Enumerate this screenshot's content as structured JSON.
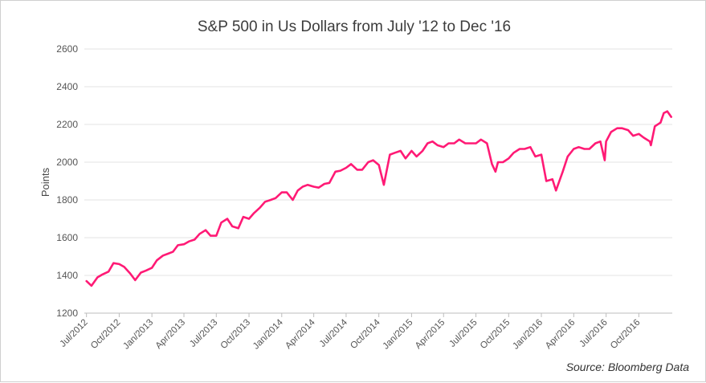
{
  "chart_data": {
    "type": "line",
    "title": "S&P 500 in Us Dollars from July '12 to Dec '16",
    "ylabel": "Points",
    "xlabel": "",
    "ylim": [
      1200,
      2600
    ],
    "yticks": [
      1200,
      1400,
      1600,
      1800,
      2000,
      2200,
      2400,
      2600
    ],
    "xticks": [
      "Jul/2012",
      "Oct/2012",
      "Jan/2013",
      "Apr/2013",
      "Jul/2013",
      "Oct/2013",
      "Jan/2014",
      "Apr/2014",
      "Jul/2014",
      "Oct/2014",
      "Jan/2015",
      "Apr/2015",
      "Jul/2015",
      "Oct/2015",
      "Jan/2016",
      "Apr/2016",
      "Jul/2016",
      "Oct/2016"
    ],
    "grid": true,
    "legend": "none",
    "line_color": "#ff1a75",
    "series": [
      {
        "x": [
          "2012-07-01",
          "2012-07-15",
          "2012-08-01",
          "2012-08-15",
          "2012-09-01",
          "2012-09-15",
          "2012-10-01",
          "2012-10-15",
          "2012-11-01",
          "2012-11-15",
          "2012-12-01",
          "2012-12-15",
          "2013-01-01",
          "2013-01-15",
          "2013-02-01",
          "2013-02-15",
          "2013-03-01",
          "2013-03-15",
          "2013-04-01",
          "2013-04-15",
          "2013-05-01",
          "2013-05-15",
          "2013-06-01",
          "2013-06-15",
          "2013-07-01",
          "2013-07-15",
          "2013-08-01",
          "2013-08-15",
          "2013-09-01",
          "2013-09-15",
          "2013-10-01",
          "2013-10-15",
          "2013-11-01",
          "2013-11-15",
          "2013-12-01",
          "2013-12-15",
          "2014-01-01",
          "2014-01-15",
          "2014-02-01",
          "2014-02-15",
          "2014-03-01",
          "2014-03-15",
          "2014-04-01",
          "2014-04-15",
          "2014-05-01",
          "2014-05-15",
          "2014-06-01",
          "2014-06-15",
          "2014-07-01",
          "2014-07-15",
          "2014-08-01",
          "2014-08-15",
          "2014-09-01",
          "2014-09-15",
          "2014-10-01",
          "2014-10-15",
          "2014-11-01",
          "2014-11-15",
          "2014-12-01",
          "2014-12-15",
          "2015-01-01",
          "2015-01-15",
          "2015-02-01",
          "2015-02-15",
          "2015-03-01",
          "2015-03-15",
          "2015-04-01",
          "2015-04-15",
          "2015-05-01",
          "2015-05-15",
          "2015-06-01",
          "2015-06-15",
          "2015-07-01",
          "2015-07-15",
          "2015-08-01",
          "2015-08-15",
          "2015-08-25",
          "2015-09-01",
          "2015-09-15",
          "2015-10-01",
          "2015-10-15",
          "2015-11-01",
          "2015-11-15",
          "2015-12-01",
          "2015-12-15",
          "2016-01-01",
          "2016-01-15",
          "2016-02-01",
          "2016-02-11",
          "2016-03-01",
          "2016-03-15",
          "2016-04-01",
          "2016-04-15",
          "2016-05-01",
          "2016-05-15",
          "2016-06-01",
          "2016-06-15",
          "2016-06-27",
          "2016-07-01",
          "2016-07-15",
          "2016-08-01",
          "2016-08-15",
          "2016-09-01",
          "2016-09-15",
          "2016-10-01",
          "2016-10-15",
          "2016-11-01",
          "2016-11-04",
          "2016-11-15",
          "2016-12-01",
          "2016-12-10",
          "2016-12-20",
          "2016-12-31"
        ],
        "y": [
          1370,
          1345,
          1390,
          1405,
          1420,
          1465,
          1460,
          1445,
          1410,
          1375,
          1415,
          1425,
          1440,
          1480,
          1505,
          1515,
          1525,
          1560,
          1565,
          1580,
          1590,
          1620,
          1640,
          1610,
          1610,
          1680,
          1700,
          1660,
          1650,
          1710,
          1700,
          1730,
          1760,
          1790,
          1800,
          1810,
          1840,
          1840,
          1800,
          1850,
          1870,
          1880,
          1870,
          1865,
          1885,
          1890,
          1950,
          1955,
          1970,
          1990,
          1960,
          1960,
          2000,
          2010,
          1985,
          1880,
          2040,
          2050,
          2060,
          2020,
          2060,
          2030,
          2060,
          2100,
          2110,
          2090,
          2080,
          2100,
          2100,
          2120,
          2100,
          2100,
          2100,
          2120,
          2100,
          1990,
          1950,
          2000,
          2000,
          2020,
          2050,
          2070,
          2070,
          2080,
          2030,
          2040,
          1900,
          1910,
          1850,
          1950,
          2030,
          2070,
          2080,
          2070,
          2070,
          2100,
          2110,
          2010,
          2110,
          2160,
          2180,
          2180,
          2170,
          2140,
          2150,
          2130,
          2110,
          2090,
          2190,
          2210,
          2260,
          2270,
          2240
        ]
      }
    ]
  },
  "source": "Source: Bloomberg Data"
}
